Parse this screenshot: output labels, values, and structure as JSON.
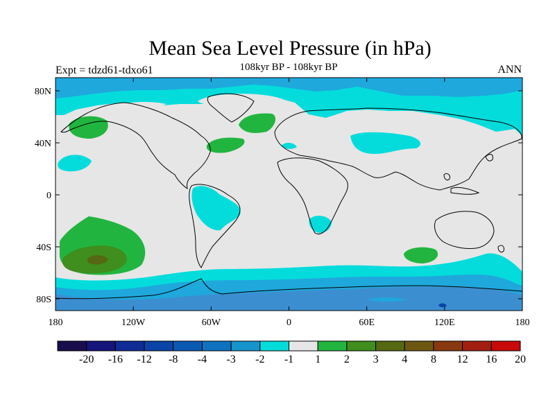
{
  "figure": {
    "title": "Mean Sea Level Pressure (in hPa)",
    "subtitle": "108kyr BP - 108kyr BP",
    "left_label": "Expt = tdzd61-tdxo61",
    "right_label": "ANN"
  },
  "axes": {
    "x_ticks": [
      "180",
      "120W",
      "60W",
      "0",
      "60E",
      "120E",
      "180"
    ],
    "y_ticks": [
      "80N",
      "40N",
      "0",
      "40S",
      "80S"
    ]
  },
  "colorbar": {
    "labels": [
      "-20",
      "-16",
      "-12",
      "-8",
      "-4",
      "-3",
      "-2",
      "-1",
      "1",
      "2",
      "3",
      "4",
      "8",
      "12",
      "16",
      "20"
    ],
    "colors": [
      "#1a0d4d",
      "#14147a",
      "#0f2c96",
      "#0a44a6",
      "#0a5ab4",
      "#0f72c0",
      "#1794cc",
      "#04dcdc",
      "#e6e6e6",
      "#21b53f",
      "#3f8e1e",
      "#556813",
      "#6d5710",
      "#883910",
      "#a21f10",
      "#c80a0a"
    ]
  },
  "map_colors": {
    "land_background": "#e6e6e6",
    "pressure_minus1": "#04dcdc",
    "pressure_minus2": "#1fa8dc",
    "pressure_minus3": "#3b8fd0",
    "pressure_plus1": "#21b53f",
    "pressure_plus2": "#3f8e1e",
    "pressure_plus3": "#556813"
  }
}
